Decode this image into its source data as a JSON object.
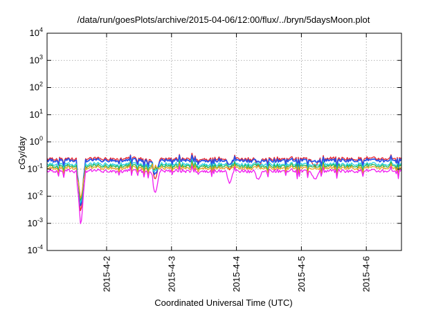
{
  "chart_data": {
    "type": "line",
    "title": "/data/run/goesPlots/archive/2015-04-06/12:00/flux/../bryn/5daysMoon.plot",
    "xlabel": "Coordinated Universal Time (UTC)",
    "ylabel": "cGy/day",
    "yscale": "log",
    "ylim": [
      0.0001,
      10000
    ],
    "xlim": [
      "2015-04-01 02:00",
      "2015-04-06 13:00"
    ],
    "grid": true,
    "y_ticks": [
      {
        "base": "10",
        "exp": "-4",
        "value": 0.0001
      },
      {
        "base": "10",
        "exp": "-3",
        "value": 0.001
      },
      {
        "base": "10",
        "exp": "-2",
        "value": 0.01
      },
      {
        "base": "10",
        "exp": "-1",
        "value": 0.1
      },
      {
        "base": "10",
        "exp": "0",
        "value": 1
      },
      {
        "base": "10",
        "exp": "1",
        "value": 10
      },
      {
        "base": "10",
        "exp": "2",
        "value": 100
      },
      {
        "base": "10",
        "exp": "3",
        "value": 1000
      },
      {
        "base": "10",
        "exp": "4",
        "value": 10000
      }
    ],
    "x_ticks": [
      {
        "label": "2015-4-2",
        "value": "2015-04-02 00:00"
      },
      {
        "label": "2015-4-3",
        "value": "2015-04-03 00:00"
      },
      {
        "label": "2015-4-4",
        "value": "2015-04-04 00:00"
      },
      {
        "label": "2015-4-5",
        "value": "2015-04-05 00:00"
      },
      {
        "label": "2015-4-6",
        "value": "2015-04-06 00:00"
      }
    ],
    "series": [
      {
        "color": "#e8232a",
        "baseline": 0.24
      },
      {
        "color": "#2a4fe6",
        "baseline": 0.21
      },
      {
        "color": "#22cfe0",
        "baseline": 0.15
      },
      {
        "color": "#2bb34a",
        "baseline": 0.13
      },
      {
        "color": "#e8a020",
        "baseline": 0.11
      },
      {
        "color": "#f01cf0",
        "baseline": 0.085
      }
    ],
    "dips": [
      {
        "time": "2015-04-01 14:30",
        "min": 0.0006
      },
      {
        "time": "2015-04-02 18:00",
        "min": 0.01
      },
      {
        "time": "2015-04-03 21:30",
        "min": 0.03
      },
      {
        "time": "2015-04-04 08:00",
        "min": 0.035
      },
      {
        "time": "2015-04-05 05:00",
        "min": 0.04
      }
    ]
  }
}
